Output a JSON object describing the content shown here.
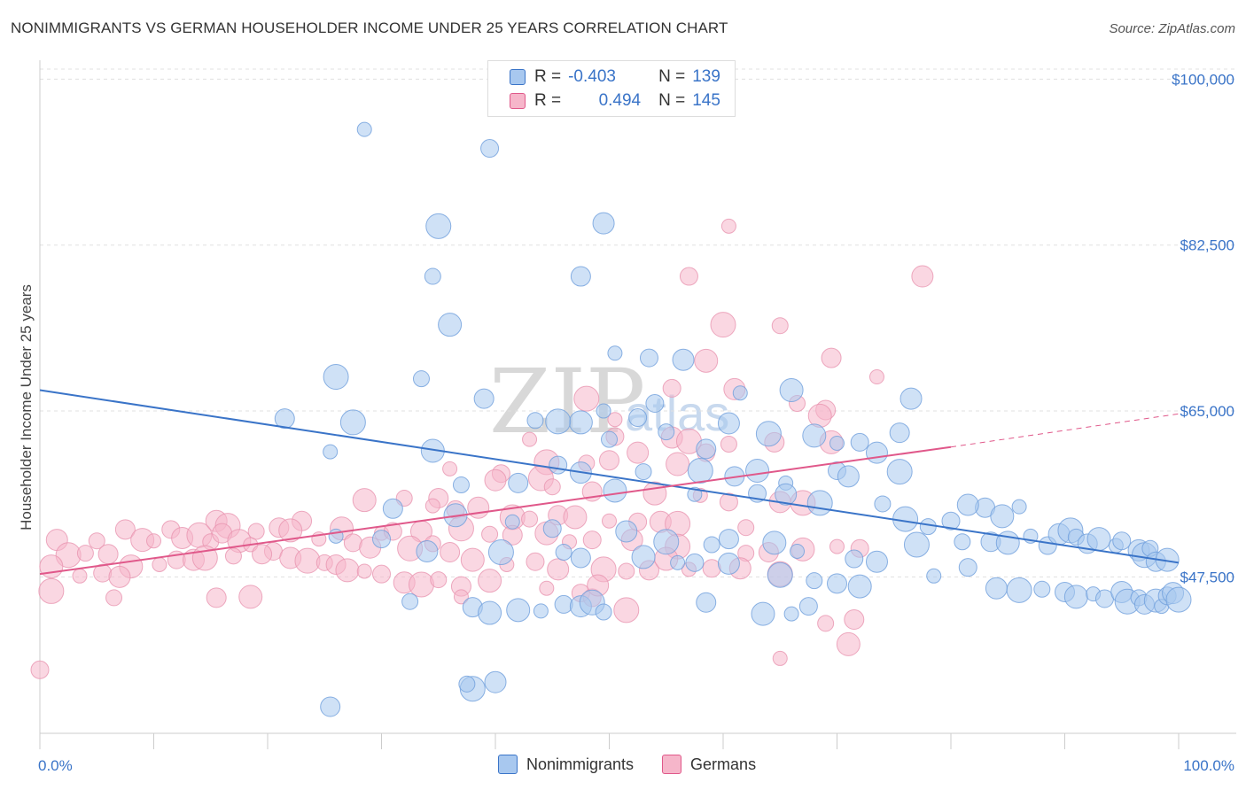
{
  "title": "NONIMMIGRANTS VS GERMAN HOUSEHOLDER INCOME UNDER 25 YEARS CORRELATION CHART",
  "source": "Source: ZipAtlas.com",
  "watermark": {
    "zip": "ZIP",
    "atlas": "atlas"
  },
  "colors": {
    "blue": "#3a74c8",
    "blue_fill": "#a8c8ef",
    "pink": "#e0588a",
    "pink_fill": "#f6b6ca"
  },
  "legend": {
    "rows": [
      {
        "r_label": "R =",
        "r_value": "-0.403",
        "n_label": "N =",
        "n_value": "139"
      },
      {
        "r_label": "R =",
        "r_value": "0.494",
        "n_label": "N =",
        "n_value": "145"
      }
    ]
  },
  "bottom_legend": {
    "series1": "Nonimmigrants",
    "series2": "Germans"
  },
  "chart_data": {
    "type": "scatter",
    "title": "NONIMMIGRANTS VS GERMAN HOUSEHOLDER INCOME UNDER 25 YEARS CORRELATION CHART",
    "xlabel": "",
    "ylabel": "Householder Income Under 25 years",
    "xlim": [
      0,
      100
    ],
    "ylim": [
      31000,
      102000
    ],
    "x_tick_labels": [
      "0.0%",
      "100.0%"
    ],
    "y_ticks": [
      47500,
      65000,
      82500,
      100000
    ],
    "y_tick_labels": [
      "$47,500",
      "$65,000",
      "$82,500",
      "$100,000"
    ],
    "grid": true,
    "legend_position": "top-center",
    "series": [
      {
        "name": "Nonimmigrants",
        "color": "#3a74c8",
        "trend": {
          "x": [
            0,
            100
          ],
          "y": [
            67200,
            49000
          ]
        },
        "points": [
          [
            28.5,
            94700
          ],
          [
            39.5,
            92700
          ],
          [
            49.5,
            84800
          ],
          [
            35,
            84500
          ],
          [
            34.5,
            79200
          ],
          [
            47.5,
            79200
          ],
          [
            36,
            74100
          ],
          [
            50.5,
            71100
          ],
          [
            53.5,
            70600
          ],
          [
            56.5,
            70400
          ],
          [
            26,
            68600
          ],
          [
            33.5,
            68400
          ],
          [
            39,
            66300
          ],
          [
            66,
            67200
          ],
          [
            61.5,
            66900
          ],
          [
            54,
            65800
          ],
          [
            76.5,
            66300
          ],
          [
            27.5,
            63800
          ],
          [
            43.5,
            64000
          ],
          [
            21.5,
            64200
          ],
          [
            47.5,
            63800
          ],
          [
            49.5,
            65000
          ],
          [
            52.5,
            64300
          ],
          [
            60.5,
            63700
          ],
          [
            45.5,
            63900
          ],
          [
            55,
            62800
          ],
          [
            75.5,
            62700
          ],
          [
            68,
            62400
          ],
          [
            70,
            61600
          ],
          [
            72,
            61700
          ],
          [
            73.5,
            60600
          ],
          [
            64,
            62600
          ],
          [
            50,
            62000
          ],
          [
            58.5,
            61000
          ],
          [
            34.5,
            60800
          ],
          [
            25.5,
            60700
          ],
          [
            45.5,
            59300
          ],
          [
            47.5,
            58500
          ],
          [
            58,
            58700
          ],
          [
            53,
            58600
          ],
          [
            61,
            58100
          ],
          [
            63,
            58700
          ],
          [
            65.5,
            57400
          ],
          [
            70,
            58700
          ],
          [
            71,
            58100
          ],
          [
            75.5,
            58600
          ],
          [
            37,
            57200
          ],
          [
            42,
            57400
          ],
          [
            50.5,
            56600
          ],
          [
            57.5,
            56200
          ],
          [
            63,
            56300
          ],
          [
            65.5,
            56200
          ],
          [
            68.5,
            55300
          ],
          [
            74,
            55200
          ],
          [
            83,
            54800
          ],
          [
            84.5,
            53900
          ],
          [
            86,
            54900
          ],
          [
            80,
            53400
          ],
          [
            81.5,
            55100
          ],
          [
            76,
            53600
          ],
          [
            78,
            52800
          ],
          [
            31,
            54700
          ],
          [
            36.5,
            54000
          ],
          [
            41.5,
            53300
          ],
          [
            45,
            52600
          ],
          [
            51.5,
            52300
          ],
          [
            55,
            51200
          ],
          [
            59,
            50900
          ],
          [
            60.5,
            51500
          ],
          [
            64.5,
            51100
          ],
          [
            66.5,
            50200
          ],
          [
            71.5,
            49400
          ],
          [
            73.5,
            49100
          ],
          [
            77,
            50900
          ],
          [
            81,
            51200
          ],
          [
            83.5,
            51200
          ],
          [
            85,
            51100
          ],
          [
            87,
            51800
          ],
          [
            88.5,
            50800
          ],
          [
            89.5,
            52000
          ],
          [
            90.5,
            52400
          ],
          [
            91,
            51700
          ],
          [
            92,
            51000
          ],
          [
            93,
            51500
          ],
          [
            94.5,
            50800
          ],
          [
            95,
            51300
          ],
          [
            96.5,
            50300
          ],
          [
            97,
            49800
          ],
          [
            97.5,
            50500
          ],
          [
            98,
            49100
          ],
          [
            99,
            49300
          ],
          [
            26,
            51800
          ],
          [
            30,
            51500
          ],
          [
            34,
            50200
          ],
          [
            40.5,
            50100
          ],
          [
            46,
            50100
          ],
          [
            47.5,
            49500
          ],
          [
            53,
            49600
          ],
          [
            56,
            49000
          ],
          [
            57.5,
            49000
          ],
          [
            60.5,
            48900
          ],
          [
            65,
            47700
          ],
          [
            68,
            47100
          ],
          [
            70,
            46800
          ],
          [
            72,
            46500
          ],
          [
            78.5,
            47600
          ],
          [
            81.5,
            48500
          ],
          [
            84,
            46300
          ],
          [
            86,
            46100
          ],
          [
            88,
            46200
          ],
          [
            90,
            45900
          ],
          [
            91,
            45400
          ],
          [
            92.5,
            45700
          ],
          [
            93.5,
            45200
          ],
          [
            95,
            45900
          ],
          [
            95.5,
            44900
          ],
          [
            96.5,
            45300
          ],
          [
            97,
            44600
          ],
          [
            98,
            45000
          ],
          [
            98.5,
            44400
          ],
          [
            99,
            45500
          ],
          [
            99.5,
            45800
          ],
          [
            100,
            45100
          ],
          [
            32.5,
            44900
          ],
          [
            38,
            44300
          ],
          [
            42,
            44000
          ],
          [
            44,
            43900
          ],
          [
            46,
            44600
          ],
          [
            47.5,
            44400
          ],
          [
            48.5,
            44800
          ],
          [
            49.5,
            43800
          ],
          [
            58.5,
            44800
          ],
          [
            63.5,
            43600
          ],
          [
            66,
            43600
          ],
          [
            67.5,
            44400
          ],
          [
            40,
            36400
          ],
          [
            38,
            35700
          ],
          [
            37.5,
            36200
          ],
          [
            25.5,
            33800
          ],
          [
            39.5,
            43700
          ]
        ]
      },
      {
        "name": "Germans",
        "color": "#e0588a",
        "trend": {
          "x": [
            0,
            80
          ],
          "y": [
            47800,
            61200
          ]
        },
        "trend_extension": {
          "x": [
            80,
            100
          ],
          "y": [
            61200,
            64700
          ]
        },
        "points": [
          [
            60.5,
            84500
          ],
          [
            57,
            79200
          ],
          [
            77.5,
            79200
          ],
          [
            60,
            74100
          ],
          [
            65,
            74000
          ],
          [
            69.5,
            70600
          ],
          [
            58.5,
            70300
          ],
          [
            73.5,
            68600
          ],
          [
            55.5,
            67400
          ],
          [
            61,
            67300
          ],
          [
            48,
            66300
          ],
          [
            66.5,
            65800
          ],
          [
            69,
            65100
          ],
          [
            68.5,
            64500
          ],
          [
            50.5,
            64100
          ],
          [
            50.5,
            62300
          ],
          [
            55.5,
            62200
          ],
          [
            57,
            61800
          ],
          [
            60.5,
            61500
          ],
          [
            64.5,
            61700
          ],
          [
            69.5,
            61700
          ],
          [
            43,
            62000
          ],
          [
            58.5,
            60600
          ],
          [
            52.5,
            60600
          ],
          [
            44.5,
            59600
          ],
          [
            48,
            59500
          ],
          [
            50,
            59800
          ],
          [
            56,
            59400
          ],
          [
            36,
            58900
          ],
          [
            40.5,
            58400
          ],
          [
            40,
            57700
          ],
          [
            44,
            57900
          ],
          [
            45,
            57000
          ],
          [
            48.5,
            56500
          ],
          [
            54,
            56300
          ],
          [
            58,
            56100
          ],
          [
            60.5,
            55400
          ],
          [
            65,
            55400
          ],
          [
            67,
            55300
          ],
          [
            32,
            55800
          ],
          [
            35,
            55800
          ],
          [
            28.5,
            55600
          ],
          [
            34.5,
            55000
          ],
          [
            36.5,
            54600
          ],
          [
            38.5,
            54800
          ],
          [
            41.5,
            53800
          ],
          [
            43,
            53600
          ],
          [
            45.5,
            54000
          ],
          [
            47,
            53800
          ],
          [
            50,
            53400
          ],
          [
            52.5,
            53300
          ],
          [
            54.5,
            53300
          ],
          [
            56,
            53100
          ],
          [
            62,
            52700
          ],
          [
            23,
            53400
          ],
          [
            26.5,
            52600
          ],
          [
            30,
            52100
          ],
          [
            31,
            52300
          ],
          [
            33.5,
            52300
          ],
          [
            37,
            52600
          ],
          [
            39.5,
            52000
          ],
          [
            41.5,
            51900
          ],
          [
            44.5,
            52100
          ],
          [
            46.5,
            51200
          ],
          [
            48.5,
            51400
          ],
          [
            52,
            51400
          ],
          [
            56,
            50700
          ],
          [
            62,
            50000
          ],
          [
            64,
            50100
          ],
          [
            67,
            50400
          ],
          [
            70,
            50700
          ],
          [
            72,
            50500
          ],
          [
            15.5,
            53400
          ],
          [
            16.5,
            52900
          ],
          [
            19,
            52300
          ],
          [
            21,
            52700
          ],
          [
            22,
            52400
          ],
          [
            24.5,
            51500
          ],
          [
            27.5,
            51100
          ],
          [
            29,
            50600
          ],
          [
            32.5,
            50500
          ],
          [
            34.5,
            51000
          ],
          [
            36,
            50100
          ],
          [
            38,
            49300
          ],
          [
            41,
            48800
          ],
          [
            43.5,
            49100
          ],
          [
            45.5,
            48300
          ],
          [
            49.5,
            48300
          ],
          [
            51.5,
            48100
          ],
          [
            53.5,
            48200
          ],
          [
            55,
            49400
          ],
          [
            57,
            48300
          ],
          [
            59,
            48400
          ],
          [
            61.5,
            48400
          ],
          [
            65,
            47800
          ],
          [
            5,
            51300
          ],
          [
            7.5,
            52500
          ],
          [
            9,
            51400
          ],
          [
            10,
            51300
          ],
          [
            11.5,
            52500
          ],
          [
            12.5,
            51600
          ],
          [
            14,
            51900
          ],
          [
            15,
            51200
          ],
          [
            16,
            52100
          ],
          [
            17.5,
            51300
          ],
          [
            18.5,
            50900
          ],
          [
            20.5,
            50200
          ],
          [
            22,
            49500
          ],
          [
            23.5,
            49200
          ],
          [
            25,
            49000
          ],
          [
            26,
            48800
          ],
          [
            27,
            48200
          ],
          [
            28.5,
            48100
          ],
          [
            30,
            47800
          ],
          [
            32,
            46900
          ],
          [
            33.5,
            46700
          ],
          [
            35,
            47200
          ],
          [
            37,
            46500
          ],
          [
            39.5,
            47100
          ],
          [
            44.5,
            46300
          ],
          [
            47.5,
            45800
          ],
          [
            1.5,
            51400
          ],
          [
            2.5,
            49800
          ],
          [
            4,
            50000
          ],
          [
            6,
            49900
          ],
          [
            8,
            48600
          ],
          [
            10.5,
            48800
          ],
          [
            12,
            49300
          ],
          [
            13.5,
            49300
          ],
          [
            14.5,
            49500
          ],
          [
            17,
            49700
          ],
          [
            19.5,
            49900
          ],
          [
            1,
            48600
          ],
          [
            3.5,
            47600
          ],
          [
            5.5,
            47900
          ],
          [
            7,
            47500
          ],
          [
            1,
            46000
          ],
          [
            6.5,
            45300
          ],
          [
            15.5,
            45300
          ],
          [
            18.5,
            45400
          ],
          [
            37,
            45400
          ],
          [
            48.5,
            45300
          ],
          [
            49,
            46600
          ],
          [
            51.5,
            44000
          ],
          [
            69,
            42600
          ],
          [
            71.5,
            43000
          ],
          [
            71,
            40400
          ],
          [
            65,
            38900
          ],
          [
            0,
            37700
          ]
        ]
      }
    ]
  }
}
